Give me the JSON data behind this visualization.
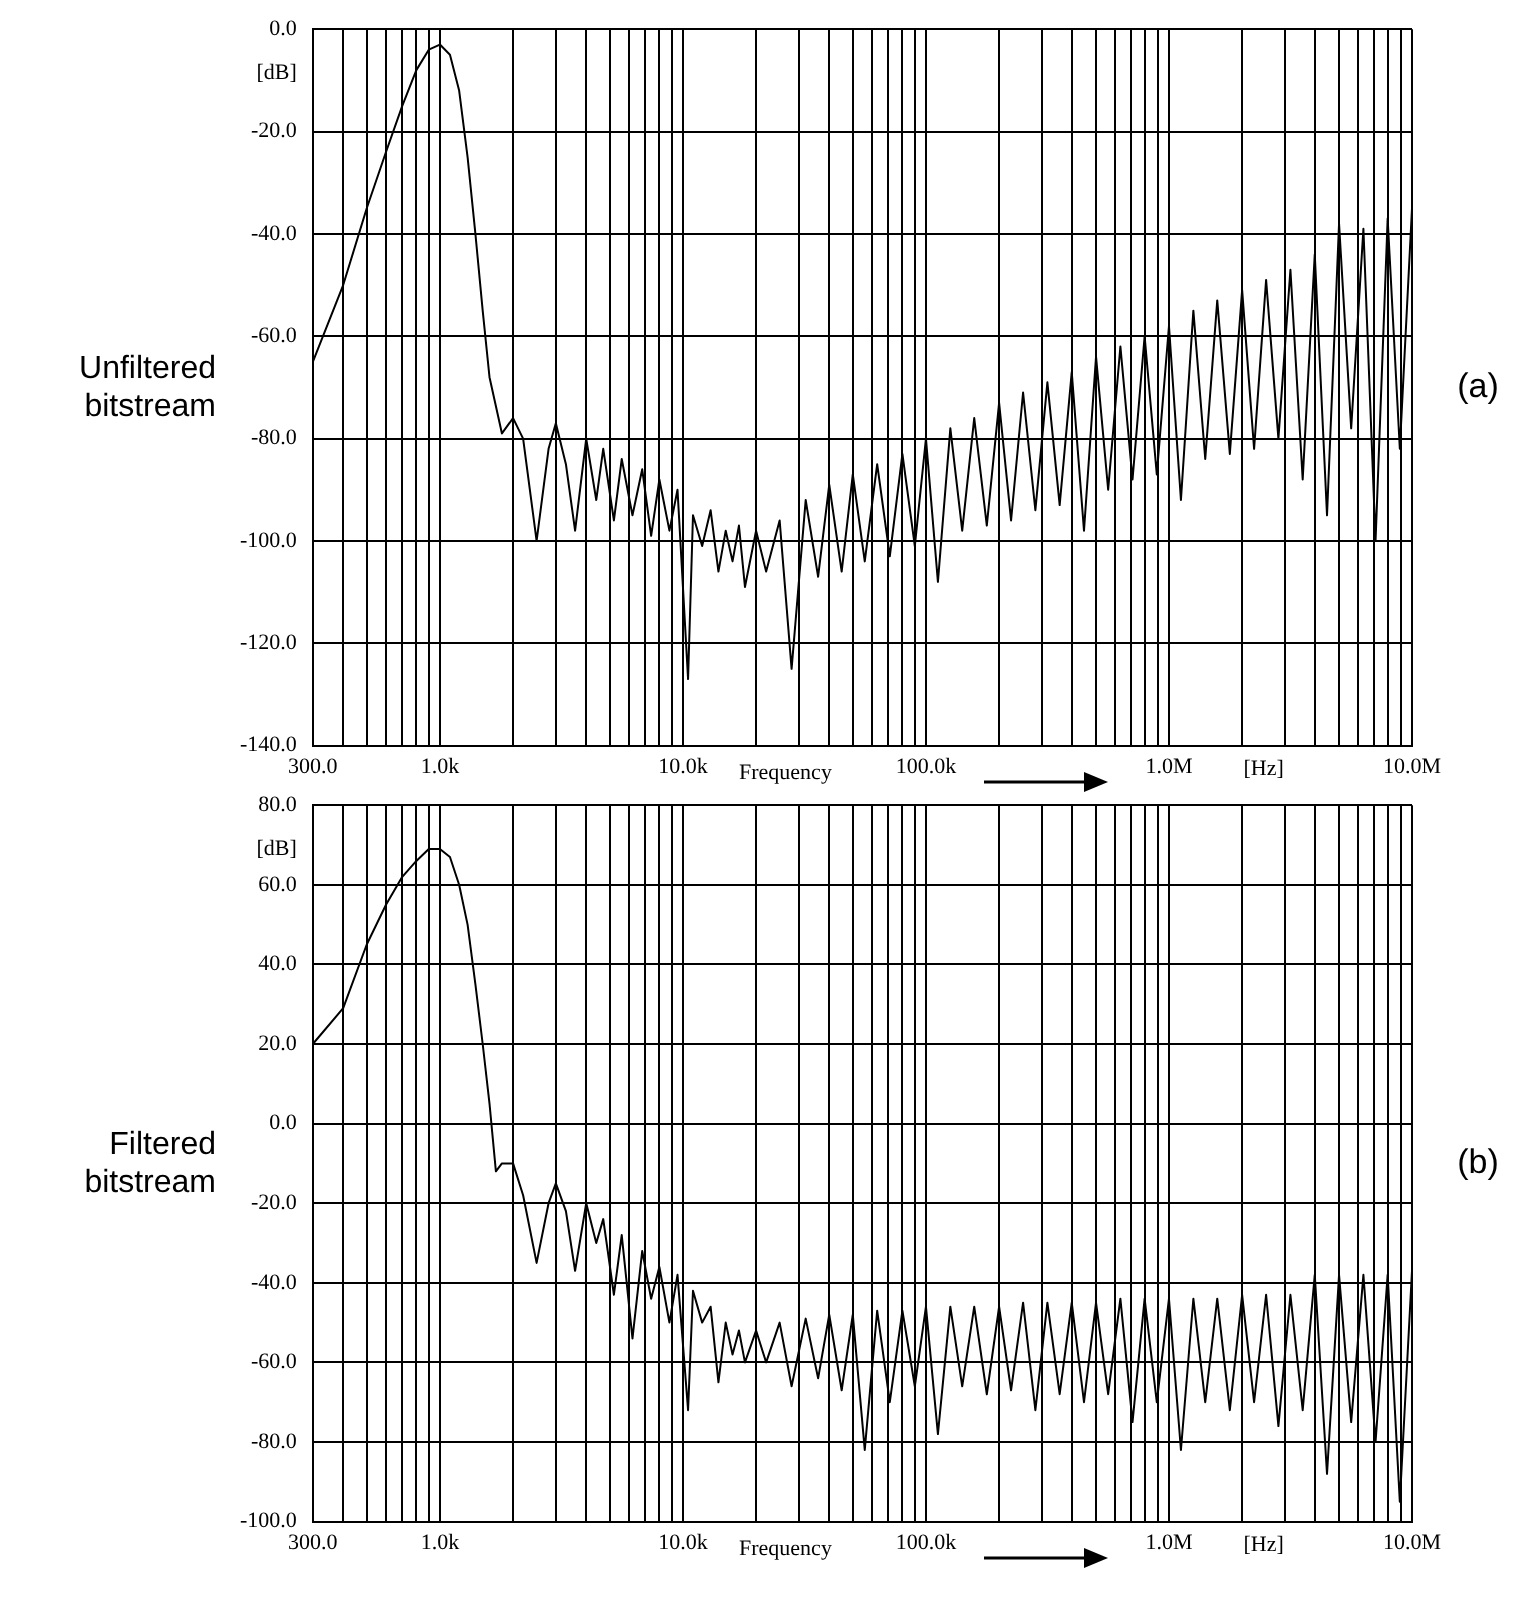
{
  "chart_data": [
    {
      "type": "line",
      "ylabel": "Unfiltered bitstream",
      "xlabel": "Frequency",
      "annotations": [
        "[dB]",
        "[Hz]",
        "(a)"
      ],
      "log": "x",
      "grid": true,
      "legend": false,
      "marker": "none",
      "line_style": "solid",
      "xlim": [
        300,
        10000000
      ],
      "ylim": [
        -140,
        0
      ],
      "xticks": [
        {
          "value": 300,
          "label": "300.0"
        },
        {
          "value": 400,
          "label": null
        },
        {
          "value": 500,
          "label": null
        },
        {
          "value": 600,
          "label": null
        },
        {
          "value": 700,
          "label": null
        },
        {
          "value": 800,
          "label": null
        },
        {
          "value": 900,
          "label": null
        },
        {
          "value": 1000,
          "label": "1.0k"
        },
        {
          "value": 2000,
          "label": null
        },
        {
          "value": 3000,
          "label": null
        },
        {
          "value": 4000,
          "label": null
        },
        {
          "value": 5000,
          "label": null
        },
        {
          "value": 6000,
          "label": null
        },
        {
          "value": 7000,
          "label": null
        },
        {
          "value": 8000,
          "label": null
        },
        {
          "value": 9000,
          "label": null
        },
        {
          "value": 10000,
          "label": "10.0k"
        },
        {
          "value": 20000,
          "label": null
        },
        {
          "value": 30000,
          "label": null
        },
        {
          "value": 40000,
          "label": null
        },
        {
          "value": 50000,
          "label": null
        },
        {
          "value": 60000,
          "label": null
        },
        {
          "value": 70000,
          "label": null
        },
        {
          "value": 80000,
          "label": null
        },
        {
          "value": 90000,
          "label": null
        },
        {
          "value": 100000,
          "label": "100.0k"
        },
        {
          "value": 200000,
          "label": null
        },
        {
          "value": 300000,
          "label": null
        },
        {
          "value": 400000,
          "label": null
        },
        {
          "value": 500000,
          "label": null
        },
        {
          "value": 600000,
          "label": null
        },
        {
          "value": 700000,
          "label": null
        },
        {
          "value": 800000,
          "label": null
        },
        {
          "value": 900000,
          "label": null
        },
        {
          "value": 1000000,
          "label": "1.0M"
        },
        {
          "value": 2000000,
          "label": null
        },
        {
          "value": 3000000,
          "label": null
        },
        {
          "value": 4000000,
          "label": null
        },
        {
          "value": 5000000,
          "label": null
        },
        {
          "value": 6000000,
          "label": null
        },
        {
          "value": 7000000,
          "label": null
        },
        {
          "value": 8000000,
          "label": null
        },
        {
          "value": 9000000,
          "label": null
        },
        {
          "value": 10000000,
          "label": "10.0M"
        }
      ],
      "yticks": [
        {
          "value": -140,
          "label": "-140.0"
        },
        {
          "value": -120,
          "label": "-120.0"
        },
        {
          "value": -100,
          "label": "-100.0"
        },
        {
          "value": -80,
          "label": "-80.0"
        },
        {
          "value": -60,
          "label": "-60.0"
        },
        {
          "value": -40,
          "label": "-40.0"
        },
        {
          "value": -20,
          "label": "-20.0"
        },
        {
          "value": 0,
          "label": "0.0"
        }
      ],
      "series": [
        {
          "color": "#000000",
          "x": [
            300,
            400,
            500,
            600,
            700,
            800,
            900,
            1000,
            1100,
            1200,
            1300,
            1400,
            1500,
            1600,
            1800,
            2000,
            2200,
            2500,
            2800,
            3000,
            3300,
            3600,
            4000,
            4400,
            4700,
            5200,
            5600,
            6200,
            6800,
            7400,
            8000,
            8800,
            9500,
            10500,
            11000,
            12000,
            13000,
            14000,
            15000,
            16000,
            17000,
            18000,
            20000,
            22000,
            25000,
            28000,
            32000,
            36000,
            40000,
            45000,
            50000,
            56000,
            63000,
            71000,
            80000,
            90000,
            100000,
            112000,
            126000,
            141000,
            158000,
            178000,
            200000,
            224000,
            251000,
            282000,
            316000,
            355000,
            398000,
            447000,
            501000,
            562000,
            631000,
            708000,
            794000,
            891000,
            1000000,
            1120000,
            1260000,
            1410000,
            1580000,
            1780000,
            2000000,
            2240000,
            2510000,
            2820000,
            3160000,
            3550000,
            3980000,
            4470000,
            5010000,
            5620000,
            6310000,
            7080000,
            7940000,
            8910000,
            10000000
          ],
          "values": [
            -65,
            -50,
            -35,
            -24,
            -15,
            -8,
            -4,
            -3,
            -5,
            -12,
            -25,
            -40,
            -55,
            -68,
            -79,
            -76,
            -80,
            -100,
            -82,
            -77,
            -85,
            -98,
            -80,
            -92,
            -82,
            -96,
            -84,
            -95,
            -86,
            -99,
            -88,
            -98,
            -90,
            -127,
            -95,
            -101,
            -94,
            -106,
            -98,
            -104,
            -97,
            -109,
            -98,
            -106,
            -96,
            -125,
            -92,
            -107,
            -89,
            -106,
            -87,
            -104,
            -85,
            -103,
            -83,
            -101,
            -80,
            -108,
            -78,
            -98,
            -76,
            -97,
            -73,
            -96,
            -71,
            -94,
            -69,
            -93,
            -67,
            -98,
            -64,
            -90,
            -62,
            -88,
            -60,
            -87,
            -58,
            -92,
            -55,
            -84,
            -53,
            -83,
            -51,
            -82,
            -49,
            -80,
            -47,
            -88,
            -44,
            -95,
            -38,
            -78,
            -39,
            -100,
            -37,
            -82,
            -35
          ]
        }
      ]
    },
    {
      "type": "line",
      "ylabel": "Filtered bitstream",
      "xlabel": "Frequency",
      "annotations": [
        "[dB]",
        "[Hz]",
        "(b)"
      ],
      "log": "x",
      "grid": true,
      "legend": false,
      "marker": "none",
      "line_style": "solid",
      "xlim": [
        300,
        10000000
      ],
      "ylim": [
        -100,
        80
      ],
      "xticks": [
        {
          "value": 300,
          "label": "300.0"
        },
        {
          "value": 400,
          "label": null
        },
        {
          "value": 500,
          "label": null
        },
        {
          "value": 600,
          "label": null
        },
        {
          "value": 700,
          "label": null
        },
        {
          "value": 800,
          "label": null
        },
        {
          "value": 900,
          "label": null
        },
        {
          "value": 1000,
          "label": "1.0k"
        },
        {
          "value": 2000,
          "label": null
        },
        {
          "value": 3000,
          "label": null
        },
        {
          "value": 4000,
          "label": null
        },
        {
          "value": 5000,
          "label": null
        },
        {
          "value": 6000,
          "label": null
        },
        {
          "value": 7000,
          "label": null
        },
        {
          "value": 8000,
          "label": null
        },
        {
          "value": 9000,
          "label": null
        },
        {
          "value": 10000,
          "label": "10.0k"
        },
        {
          "value": 20000,
          "label": null
        },
        {
          "value": 30000,
          "label": null
        },
        {
          "value": 40000,
          "label": null
        },
        {
          "value": 50000,
          "label": null
        },
        {
          "value": 60000,
          "label": null
        },
        {
          "value": 70000,
          "label": null
        },
        {
          "value": 80000,
          "label": null
        },
        {
          "value": 90000,
          "label": null
        },
        {
          "value": 100000,
          "label": "100.0k"
        },
        {
          "value": 200000,
          "label": null
        },
        {
          "value": 300000,
          "label": null
        },
        {
          "value": 400000,
          "label": null
        },
        {
          "value": 500000,
          "label": null
        },
        {
          "value": 600000,
          "label": null
        },
        {
          "value": 700000,
          "label": null
        },
        {
          "value": 800000,
          "label": null
        },
        {
          "value": 900000,
          "label": null
        },
        {
          "value": 1000000,
          "label": "1.0M"
        },
        {
          "value": 2000000,
          "label": null
        },
        {
          "value": 3000000,
          "label": null
        },
        {
          "value": 4000000,
          "label": null
        },
        {
          "value": 5000000,
          "label": null
        },
        {
          "value": 6000000,
          "label": null
        },
        {
          "value": 7000000,
          "label": null
        },
        {
          "value": 8000000,
          "label": null
        },
        {
          "value": 9000000,
          "label": null
        },
        {
          "value": 10000000,
          "label": "10.0M"
        }
      ],
      "yticks": [
        {
          "value": -100,
          "label": "-100.0"
        },
        {
          "value": -80,
          "label": "-80.0"
        },
        {
          "value": -60,
          "label": "-60.0"
        },
        {
          "value": -40,
          "label": "-40.0"
        },
        {
          "value": -20,
          "label": "-20.0"
        },
        {
          "value": 0,
          "label": "0.0"
        },
        {
          "value": 20,
          "label": "20.0"
        },
        {
          "value": 40,
          "label": "40.0"
        },
        {
          "value": 60,
          "label": "60.0"
        },
        {
          "value": 80,
          "label": "80.0"
        }
      ],
      "series": [
        {
          "color": "#000000",
          "x": [
            300,
            400,
            500,
            600,
            700,
            800,
            900,
            1000,
            1100,
            1200,
            1300,
            1400,
            1500,
            1600,
            1700,
            1800,
            2000,
            2200,
            2500,
            2800,
            3000,
            3300,
            3600,
            4000,
            4400,
            4700,
            5200,
            5600,
            6200,
            6800,
            7400,
            8000,
            8800,
            9500,
            10500,
            11000,
            12000,
            13000,
            14000,
            15000,
            16000,
            17000,
            18000,
            20000,
            22000,
            25000,
            28000,
            32000,
            36000,
            40000,
            45000,
            50000,
            56000,
            63000,
            71000,
            80000,
            90000,
            100000,
            112000,
            126000,
            141000,
            158000,
            178000,
            200000,
            224000,
            251000,
            282000,
            316000,
            355000,
            398000,
            447000,
            501000,
            562000,
            631000,
            708000,
            794000,
            891000,
            1000000,
            1120000,
            1260000,
            1410000,
            1580000,
            1780000,
            2000000,
            2240000,
            2510000,
            2820000,
            3160000,
            3550000,
            3980000,
            4470000,
            5010000,
            5620000,
            6310000,
            7080000,
            7940000,
            8910000,
            10000000
          ],
          "values": [
            20,
            29,
            45,
            55,
            62,
            66,
            69,
            69,
            67,
            60,
            50,
            35,
            20,
            5,
            -12,
            -10,
            -10,
            -18,
            -35,
            -20,
            -15,
            -22,
            -37,
            -20,
            -30,
            -24,
            -43,
            -28,
            -54,
            -32,
            -44,
            -36,
            -50,
            -38,
            -72,
            -42,
            -50,
            -46,
            -65,
            -50,
            -58,
            -52,
            -60,
            -52,
            -60,
            -50,
            -66,
            -49,
            -64,
            -48,
            -67,
            -48,
            -82,
            -47,
            -70,
            -47,
            -66,
            -46,
            -78,
            -46,
            -66,
            -46,
            -68,
            -46,
            -67,
            -45,
            -72,
            -45,
            -68,
            -45,
            -70,
            -45,
            -68,
            -44,
            -75,
            -44,
            -70,
            -44,
            -82,
            -44,
            -70,
            -44,
            -72,
            -43,
            -70,
            -43,
            -76,
            -43,
            -72,
            -38,
            -88,
            -38,
            -75,
            -38,
            -80,
            -38,
            -95,
            -37
          ]
        }
      ]
    }
  ]
}
